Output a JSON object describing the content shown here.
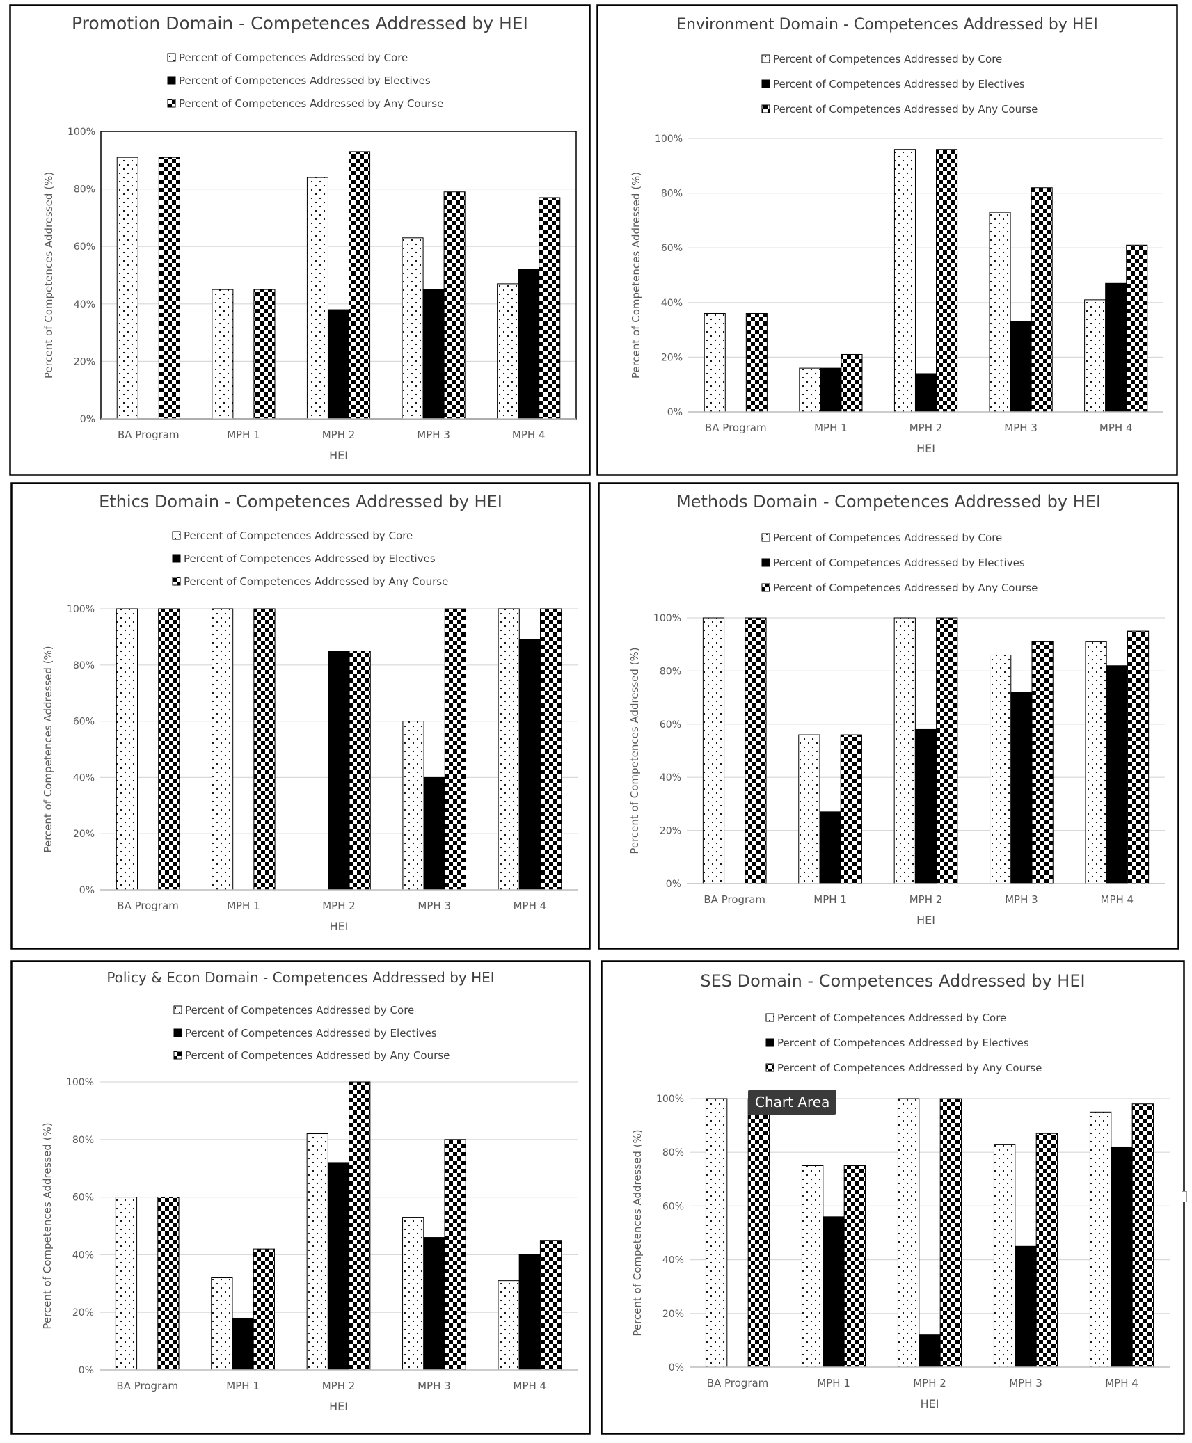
{
  "tooltip": "Chart Area",
  "colors": {
    "text": "#404040",
    "grid": "#d9d9d9",
    "axis": "#595959",
    "frame": "#000000"
  },
  "chart_data": [
    {
      "type": "bar",
      "title": "Promotion Domain - Competences Addressed by HEI",
      "xlabel": "HEI",
      "ylabel": "Percent of Competences Addressed (%)",
      "ylim": [
        0,
        100
      ],
      "yticks": [
        "0%",
        "20%",
        "40%",
        "60%",
        "80%",
        "100%"
      ],
      "grid": true,
      "legend_position": "top",
      "categories": [
        "BA Program",
        "MPH 1",
        "MPH 2",
        "MPH 3",
        "MPH 4"
      ],
      "series": [
        {
          "name": "Percent of Competences Addressed by Core",
          "pattern": "dots",
          "values": [
            91,
            45,
            84,
            63,
            47
          ]
        },
        {
          "name": "Percent of Competences Addressed by Electives",
          "pattern": "solid",
          "values": [
            0,
            0,
            38,
            45,
            52
          ]
        },
        {
          "name": "Percent of Competences Addressed by Any Course",
          "pattern": "checker",
          "values": [
            91,
            45,
            93,
            79,
            77
          ]
        }
      ]
    },
    {
      "type": "bar",
      "title": "Environment Domain - Competences Addressed by HEI",
      "xlabel": "HEI",
      "ylabel": "Percent of Competences Addressed (%)",
      "ylim": [
        0,
        100
      ],
      "yticks": [
        "0%",
        "20%",
        "40%",
        "60%",
        "80%",
        "100%"
      ],
      "grid": true,
      "legend_position": "top",
      "categories": [
        "BA Program",
        "MPH 1",
        "MPH 2",
        "MPH 3",
        "MPH 4"
      ],
      "series": [
        {
          "name": "Percent of Competences Addressed by Core",
          "pattern": "dots",
          "values": [
            36,
            16,
            96,
            73,
            41
          ]
        },
        {
          "name": "Percent of Competences Addressed by Electives",
          "pattern": "solid",
          "values": [
            0,
            16,
            14,
            33,
            47
          ]
        },
        {
          "name": "Percent of Competences Addressed by Any Course",
          "pattern": "checker",
          "values": [
            36,
            21,
            96,
            82,
            61
          ]
        }
      ]
    },
    {
      "type": "bar",
      "title": "Ethics Domain - Competences Addressed by HEI",
      "xlabel": "HEI",
      "ylabel": "Percent of Competences Addressed (%)",
      "ylim": [
        0,
        100
      ],
      "yticks": [
        "0%",
        "20%",
        "40%",
        "60%",
        "80%",
        "100%"
      ],
      "grid": true,
      "legend_position": "top",
      "categories": [
        "BA Program",
        "MPH 1",
        "MPH 2",
        "MPH 3",
        "MPH 4"
      ],
      "series": [
        {
          "name": "Percent of Competences Addressed by Core",
          "pattern": "dots",
          "values": [
            100,
            100,
            0,
            60,
            100
          ]
        },
        {
          "name": "Percent of Competences Addressed by Electives",
          "pattern": "solid",
          "values": [
            0,
            0,
            85,
            40,
            89
          ]
        },
        {
          "name": "Percent of Competences Addressed by Any Course",
          "pattern": "checker",
          "values": [
            100,
            100,
            85,
            100,
            100
          ]
        }
      ]
    },
    {
      "type": "bar",
      "title": "Methods Domain - Competences Addressed by HEI",
      "xlabel": "HEI",
      "ylabel": "Percent of Competences Addressed (%)",
      "ylim": [
        0,
        100
      ],
      "yticks": [
        "0%",
        "20%",
        "40%",
        "60%",
        "80%",
        "100%"
      ],
      "grid": true,
      "legend_position": "top",
      "categories": [
        "BA Program",
        "MPH 1",
        "MPH 2",
        "MPH 3",
        "MPH 4"
      ],
      "series": [
        {
          "name": "Percent of Competences Addressed by Core",
          "pattern": "dots",
          "values": [
            100,
            56,
            100,
            86,
            91
          ]
        },
        {
          "name": "Percent of Competences Addressed by Electives",
          "pattern": "solid",
          "values": [
            0,
            27,
            58,
            72,
            82
          ]
        },
        {
          "name": "Percent of Competences Addressed by Any Course",
          "pattern": "checker",
          "values": [
            100,
            56,
            100,
            91,
            95
          ]
        }
      ]
    },
    {
      "type": "bar",
      "title": "Policy & Econ Domain - Competences Addressed by HEI",
      "xlabel": "HEI",
      "ylabel": "Percent of Competences Addressed (%)",
      "ylim": [
        0,
        100
      ],
      "yticks": [
        "0%",
        "20%",
        "40%",
        "60%",
        "80%",
        "100%"
      ],
      "grid": true,
      "legend_position": "top",
      "categories": [
        "BA Program",
        "MPH 1",
        "MPH 2",
        "MPH 3",
        "MPH 4"
      ],
      "series": [
        {
          "name": "Percent of Competences Addressed by Core",
          "pattern": "dots",
          "values": [
            60,
            32,
            82,
            53,
            31
          ]
        },
        {
          "name": "Percent of Competences Addressed by Electives",
          "pattern": "solid",
          "values": [
            0,
            18,
            72,
            46,
            40
          ]
        },
        {
          "name": "Percent of Competences Addressed by Any Course",
          "pattern": "checker",
          "values": [
            60,
            42,
            100,
            80,
            45
          ]
        }
      ]
    },
    {
      "type": "bar",
      "title": "SES Domain - Competences Addressed by HEI",
      "xlabel": "HEI",
      "ylabel": "Percent of Competences Addressed (%)",
      "ylim": [
        0,
        100
      ],
      "yticks": [
        "0%",
        "20%",
        "40%",
        "60%",
        "80%",
        "100%"
      ],
      "grid": true,
      "legend_position": "top",
      "categories": [
        "BA Program",
        "MPH 1",
        "MPH 2",
        "MPH 3",
        "MPH 4"
      ],
      "series": [
        {
          "name": "Percent of Competences Addressed by Core",
          "pattern": "dots",
          "values": [
            100,
            75,
            100,
            83,
            95
          ]
        },
        {
          "name": "Percent of Competences Addressed by Electives",
          "pattern": "solid",
          "values": [
            0,
            56,
            12,
            45,
            82
          ]
        },
        {
          "name": "Percent of Competences Addressed by Any Course",
          "pattern": "checker",
          "values": [
            100,
            75,
            100,
            87,
            98
          ]
        }
      ]
    }
  ]
}
